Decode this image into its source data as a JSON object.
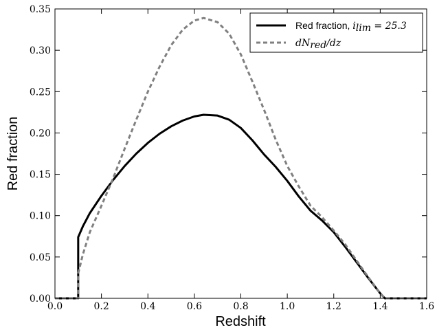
{
  "chart_data": {
    "type": "line",
    "xlabel": "Redshift",
    "ylabel": "Red fraction",
    "xlim": [
      0.0,
      1.6
    ],
    "ylim": [
      0.0,
      0.35
    ],
    "xticks": [
      "0.0",
      "0.2",
      "0.4",
      "0.6",
      "0.8",
      "1.0",
      "1.2",
      "1.4",
      "1.6"
    ],
    "yticks": [
      "0.00",
      "0.05",
      "0.10",
      "0.15",
      "0.20",
      "0.25",
      "0.30",
      "0.35"
    ],
    "grid": false,
    "legend_position": "top-right",
    "series": [
      {
        "name": "Red fraction, i_lim = 25.3",
        "legend_text": "Red fraction, ",
        "legend_math_var": "i",
        "legend_math_sub": "lim",
        "legend_math_rest": " = 25.3",
        "style": "solid",
        "color": "#000000",
        "x": [
          0.0,
          0.099,
          0.1,
          0.1,
          0.12,
          0.15,
          0.2,
          0.25,
          0.3,
          0.35,
          0.4,
          0.45,
          0.5,
          0.55,
          0.6,
          0.64,
          0.7,
          0.75,
          0.8,
          0.85,
          0.9,
          0.95,
          1.0,
          1.05,
          1.1,
          1.15,
          1.2,
          1.25,
          1.3,
          1.35,
          1.4,
          1.42,
          1.5,
          1.6
        ],
        "y": [
          0.0,
          0.0,
          0.0,
          0.074,
          0.087,
          0.103,
          0.124,
          0.143,
          0.16,
          0.175,
          0.188,
          0.199,
          0.208,
          0.215,
          0.22,
          0.222,
          0.221,
          0.216,
          0.206,
          0.191,
          0.174,
          0.159,
          0.142,
          0.123,
          0.106,
          0.094,
          0.08,
          0.062,
          0.043,
          0.024,
          0.006,
          0.0,
          0.0,
          0.0
        ]
      },
      {
        "name": "dN_red/dz",
        "legend_math_var": "dN",
        "legend_math_sub": "red",
        "legend_math_rest": "/dz",
        "style": "dashed",
        "color": "#808080",
        "x": [
          0.0,
          0.099,
          0.1,
          0.1,
          0.12,
          0.15,
          0.2,
          0.25,
          0.3,
          0.35,
          0.4,
          0.45,
          0.5,
          0.55,
          0.6,
          0.64,
          0.7,
          0.75,
          0.8,
          0.85,
          0.9,
          0.95,
          1.0,
          1.05,
          1.1,
          1.15,
          1.2,
          1.25,
          1.3,
          1.35,
          1.4,
          1.42,
          1.5,
          1.6
        ],
        "y": [
          0.0,
          0.0,
          0.0,
          0.03,
          0.053,
          0.08,
          0.112,
          0.145,
          0.181,
          0.216,
          0.25,
          0.28,
          0.306,
          0.325,
          0.336,
          0.339,
          0.334,
          0.32,
          0.295,
          0.262,
          0.228,
          0.192,
          0.16,
          0.135,
          0.112,
          0.098,
          0.082,
          0.065,
          0.045,
          0.025,
          0.006,
          0.0,
          0.0,
          0.0
        ]
      }
    ]
  }
}
